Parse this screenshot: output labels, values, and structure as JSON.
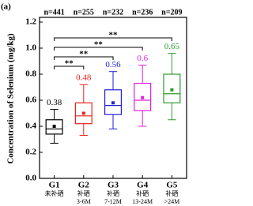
{
  "chart_data": {
    "type": "box",
    "panel_label": "(a)",
    "ylabel": "Concentration of Selenium (mg/kg)",
    "categories": [
      "G1",
      "G2",
      "G3",
      "G4",
      "G5"
    ],
    "category_notes": [
      [
        "未补硒"
      ],
      [
        "补硒",
        "3-6M"
      ],
      [
        "补硒",
        "7-12M"
      ],
      [
        "补硒",
        "13-24M"
      ],
      [
        "补硒",
        ">24M"
      ]
    ],
    "n_labels": [
      "n=441",
      "n=255",
      "n=232",
      "n=236",
      "n=209"
    ],
    "colors": [
      "#000000",
      "#e8231c",
      "#1f1fd6",
      "#e020e0",
      "#2e9a2e"
    ],
    "whisker_low": [
      0.27,
      0.33,
      0.38,
      0.4,
      0.45
    ],
    "q1": [
      0.34,
      0.42,
      0.49,
      0.52,
      0.58
    ],
    "median": [
      0.38,
      0.48,
      0.56,
      0.6,
      0.65
    ],
    "q3": [
      0.45,
      0.58,
      0.68,
      0.73,
      0.8
    ],
    "whisker_high": [
      0.53,
      0.72,
      0.82,
      0.87,
      0.96
    ],
    "mean": [
      0.4,
      0.5,
      0.58,
      0.62,
      0.68
    ],
    "brackets": [
      {
        "pair": [
          "G1",
          "G5"
        ],
        "label": "**"
      },
      {
        "pair": [
          "G1",
          "G4"
        ],
        "label": "**"
      },
      {
        "pair": [
          "G1",
          "G3"
        ],
        "label": "**"
      },
      {
        "pair": [
          "G1",
          "G2"
        ],
        "label": "**"
      }
    ],
    "ylim": [
      0,
      1.2
    ],
    "yticks": [
      {
        "value": 0,
        "label": "0.0"
      },
      0.2,
      0.4,
      0.6,
      0.8,
      {
        "value": 1,
        "label": "1.0"
      },
      1.2
    ]
  }
}
